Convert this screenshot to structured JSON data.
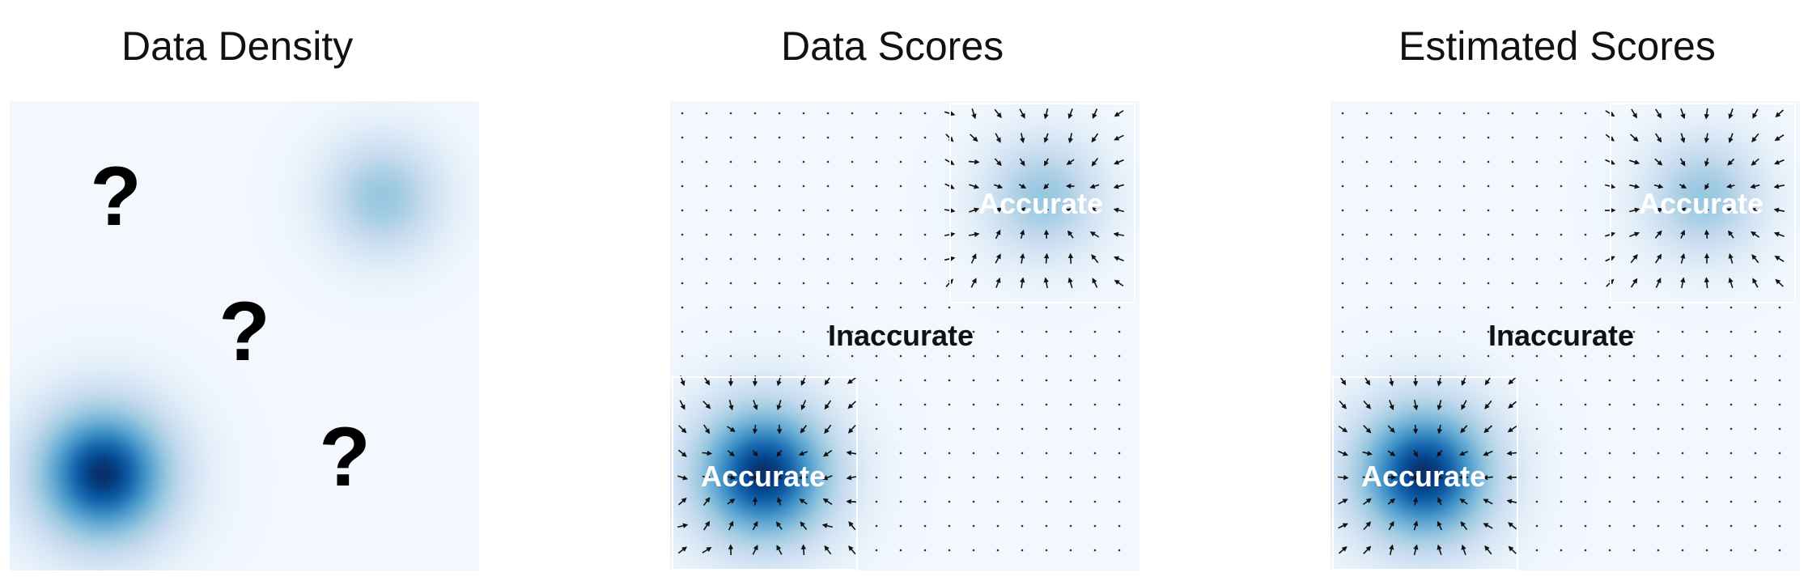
{
  "titles": {
    "density": "Data Density",
    "data_scores": "Data Scores",
    "estimated_scores": "Estimated Scores"
  },
  "density_panel": {
    "question_mark": "?",
    "question_count": 3
  },
  "score_panels": {
    "accurate_label": "Accurate",
    "inaccurate_label": "Inaccurate"
  },
  "colors": {
    "background_light": "#f4f8fc",
    "dense_center": "#08306b",
    "light_blob": "#6baed6",
    "region_border": "#ffffff",
    "arrow": "#111111"
  },
  "icons": {
    "question": "question-mark-icon",
    "arrow": "vector-arrow-icon"
  }
}
